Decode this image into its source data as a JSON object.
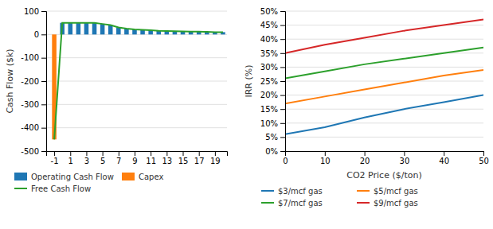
{
  "chart_data": [
    {
      "type": "bar",
      "x": [
        -1,
        0,
        1,
        2,
        3,
        4,
        5,
        6,
        7,
        8,
        9,
        10,
        11,
        12,
        13,
        14,
        15,
        16,
        17,
        18,
        19,
        20
      ],
      "series": [
        {
          "name": "Operating Cash Flow",
          "type": "bar",
          "values": [
            0,
            50,
            50,
            50,
            50,
            50,
            45,
            40,
            30,
            25,
            22,
            20,
            18,
            16,
            15,
            14,
            13,
            12,
            12,
            11,
            10,
            10
          ]
        },
        {
          "name": "Capex",
          "type": "bar",
          "values": [
            -450,
            0,
            0,
            0,
            0,
            0,
            0,
            0,
            0,
            0,
            0,
            0,
            0,
            0,
            0,
            0,
            0,
            0,
            0,
            0,
            0,
            0
          ]
        },
        {
          "name": "Free Cash Flow",
          "type": "line",
          "values": [
            -450,
            50,
            50,
            50,
            50,
            50,
            45,
            40,
            30,
            25,
            22,
            20,
            18,
            16,
            15,
            14,
            13,
            12,
            12,
            11,
            10,
            10
          ]
        }
      ],
      "ylabel": "Cash Flow ($k)",
      "xlim": [
        -2,
        20.5
      ],
      "xticks": [
        -1,
        1,
        3,
        5,
        7,
        9,
        11,
        13,
        15,
        17,
        19
      ],
      "ylim": [
        -500,
        100
      ],
      "yticks": [
        100,
        0,
        -100,
        -200,
        -300,
        -400,
        -500
      ],
      "grid": true,
      "legend": "bottom"
    },
    {
      "type": "line",
      "x": [
        0,
        10,
        20,
        30,
        40,
        50
      ],
      "series": [
        {
          "name": "$3/mcf gas",
          "values": [
            6,
            8.5,
            12,
            15,
            17.5,
            20
          ]
        },
        {
          "name": "$5/mcf gas",
          "values": [
            17,
            19.5,
            22,
            24.5,
            27,
            29
          ]
        },
        {
          "name": "$7/mcf gas",
          "values": [
            26,
            28.5,
            31,
            33,
            35,
            37
          ]
        },
        {
          "name": "$9/mcf gas",
          "values": [
            35,
            38,
            40.5,
            43,
            45,
            47
          ]
        }
      ],
      "xlabel": "CO2 Price ($/ton)",
      "ylabel": "IRR (%)",
      "xlim": [
        0,
        50
      ],
      "xticks": [
        0,
        10,
        20,
        30,
        40,
        50
      ],
      "ylim": [
        0,
        50
      ],
      "yticks": [
        {
          "value": 0,
          "label": "0%"
        },
        {
          "value": 5,
          "label": "5%"
        },
        {
          "value": 10,
          "label": "10%"
        },
        {
          "value": 15,
          "label": "15%"
        },
        {
          "value": 20,
          "label": "20%"
        },
        {
          "value": 25,
          "label": "25%"
        },
        {
          "value": 30,
          "label": "30%"
        },
        {
          "value": 35,
          "label": "35%"
        },
        {
          "value": 40,
          "label": "40%"
        },
        {
          "value": 45,
          "label": "45%"
        },
        {
          "value": 50,
          "label": "50%"
        }
      ],
      "grid": true,
      "legend": "bottom"
    }
  ]
}
